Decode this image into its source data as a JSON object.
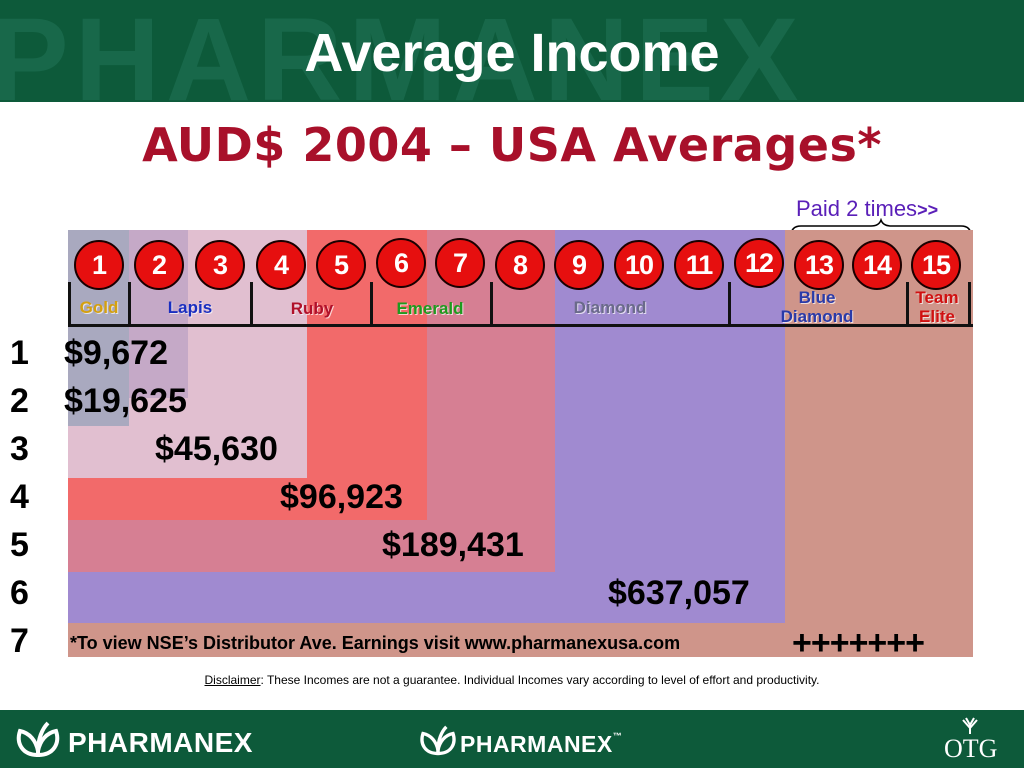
{
  "header": {
    "title": "Average Income",
    "watermark": "PHARMANEX"
  },
  "subtitle": "AUD$ 2004 – USA Averages*",
  "paid_note": {
    "text": "Paid 2 times",
    "arrows": ">>"
  },
  "levels": [
    "1",
    "2",
    "3",
    "4",
    "5",
    "6",
    "7",
    "8",
    "9",
    "10",
    "11",
    "12",
    "13",
    "14",
    "15"
  ],
  "ranks": {
    "gold": "Gold",
    "lapis": "Lapis",
    "ruby": "Ruby",
    "emerald": "Emerald",
    "diamond": "Diamond",
    "blue_diamond_1": "Blue",
    "blue_diamond_2": "Diamond",
    "team_elite_1": "Team",
    "team_elite_2": "Elite"
  },
  "rows": [
    {
      "num": "1",
      "amount": "$9,672"
    },
    {
      "num": "2",
      "amount": "$19,625"
    },
    {
      "num": "3",
      "amount": "$45,630"
    },
    {
      "num": "4",
      "amount": "$96,923"
    },
    {
      "num": "5",
      "amount": "$189,431"
    },
    {
      "num": "6",
      "amount": "$637,057"
    },
    {
      "num": "7",
      "amount": ""
    }
  ],
  "footnote": "*To view NSE’s Distributor Ave. Earnings visit www.pharmanexusa.com",
  "plus_marks": "+++++++",
  "disclaimer": {
    "label": "Disclaimer",
    "text": ": These Incomes are not a guarantee.  Individual Incomes vary according to level of effort and productivity."
  },
  "footer": {
    "logo_left": "PHARMANEX",
    "logo_center": "PHARMANEX",
    "tm": "™",
    "logo_right": "OTG"
  },
  "colors": {
    "header_green": "#0d5a3a",
    "subtitle_red": "#a8102a",
    "gold_band": "#a9a9bf",
    "lapis_band": "#e1bfd0",
    "ruby_band": "#f26a6a",
    "emerald_band": "#d67f93",
    "diamond_band": "#a08ad0",
    "blue_diamond_band": "#cf958a",
    "circle_red": "#e60f0f"
  },
  "icons": [
    "pharmanex-leaf-logo-icon",
    "curly-brace-icon",
    "otg-logo-icon"
  ]
}
